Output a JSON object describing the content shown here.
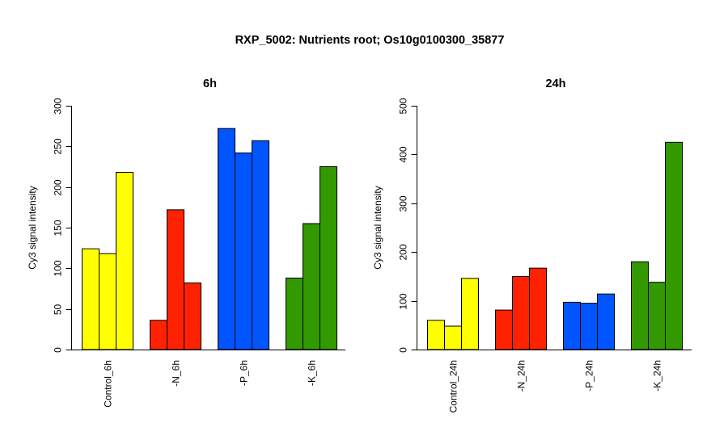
{
  "title": "RXP_5002: Nutrients root; Os10g0100300_35877",
  "chart_data": [
    {
      "type": "bar",
      "title": "6h",
      "ylabel": "Cy3 signal intensity",
      "ylim": [
        0,
        300
      ],
      "yticks": [
        0,
        50,
        100,
        150,
        200,
        250,
        300
      ],
      "groups": [
        {
          "label": "Control_6h",
          "color": "#ffff00",
          "values": [
            124,
            118,
            218
          ]
        },
        {
          "label": "-N_6h",
          "color": "#ff2200",
          "values": [
            36,
            172,
            82
          ]
        },
        {
          "label": "-P_6h",
          "color": "#0055ff",
          "values": [
            272,
            242,
            257
          ]
        },
        {
          "label": "-K_6h",
          "color": "#339900",
          "values": [
            88,
            155,
            225
          ]
        }
      ]
    },
    {
      "type": "bar",
      "title": "24h",
      "ylabel": "Cy3 signal intensity",
      "ylim": [
        0,
        500
      ],
      "yticks": [
        0,
        100,
        200,
        300,
        400,
        500
      ],
      "groups": [
        {
          "label": "Control_24h",
          "color": "#ffff00",
          "values": [
            60,
            48,
            146
          ]
        },
        {
          "label": "-N_24h",
          "color": "#ff2200",
          "values": [
            81,
            150,
            167
          ]
        },
        {
          "label": "-P_24h",
          "color": "#0055ff",
          "values": [
            97,
            95,
            114
          ]
        },
        {
          "label": "-K_24h",
          "color": "#339900",
          "values": [
            180,
            138,
            425
          ]
        }
      ]
    }
  ]
}
